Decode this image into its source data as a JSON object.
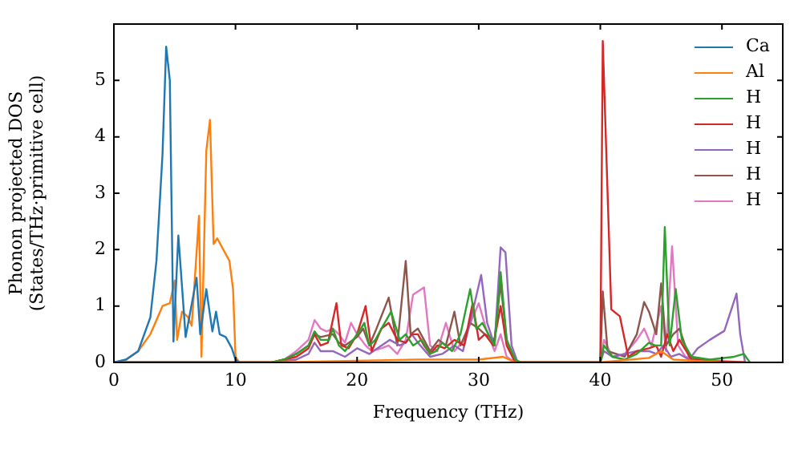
{
  "chart_data": {
    "type": "line",
    "xlabel": "Frequency (THz)",
    "ylabel": "Phonon projected DOS\n(States/THz·primitive cell)",
    "xlim": [
      0,
      55
    ],
    "ylim": [
      0,
      6
    ],
    "xticks": [
      0,
      10,
      20,
      30,
      40,
      50
    ],
    "yticks": [
      0,
      1,
      2,
      3,
      4,
      5
    ],
    "grid": false,
    "legend": "top right",
    "marker": "none",
    "line_style": "solid",
    "series": [
      {
        "name": "Ca",
        "color": "#1f77b4",
        "x": [
          0,
          1,
          2,
          3,
          3.5,
          4,
          4.3,
          4.6,
          4.9,
          5.3,
          5.9,
          6.8,
          7.1,
          7.6,
          8.1,
          8.4,
          8.7,
          9.2,
          9.7,
          10,
          10.3
        ],
        "values": [
          0,
          0.05,
          0.2,
          0.8,
          1.8,
          3.7,
          5.6,
          5.0,
          0.37,
          2.25,
          0.45,
          1.5,
          0.5,
          1.3,
          0.55,
          0.9,
          0.5,
          0.45,
          0.25,
          0.05,
          0
        ]
      },
      {
        "name": "Al",
        "color": "#ff7f0e",
        "x": [
          0,
          1,
          2,
          3,
          4,
          4.6,
          5,
          5.2,
          5.6,
          6.1,
          6.4,
          7,
          7.2,
          7.6,
          7.9,
          8.2,
          8.5,
          9,
          9.5,
          9.8,
          10,
          10.3,
          13,
          20,
          25,
          30,
          32,
          33,
          40,
          44,
          45,
          46,
          50
        ],
        "values": [
          0,
          0.05,
          0.2,
          0.5,
          1.0,
          1.05,
          1.45,
          0.4,
          0.9,
          0.8,
          0.65,
          2.6,
          0.1,
          3.75,
          4.3,
          2.1,
          2.2,
          2.0,
          1.8,
          1.3,
          0.1,
          0,
          0,
          0.03,
          0.05,
          0.05,
          0.1,
          0,
          0,
          0.08,
          0.2,
          0.05,
          0
        ]
      },
      {
        "name": "H",
        "color": "#2ca02c",
        "x": [
          0,
          13,
          14,
          15,
          16,
          16.5,
          17,
          17.7,
          18,
          18.5,
          19,
          20,
          20.6,
          21,
          21.5,
          22,
          22.8,
          23.5,
          24,
          24.6,
          25.3,
          26,
          26.5,
          27,
          27.8,
          28.5,
          29.3,
          29.8,
          30.3,
          30.8,
          31.3,
          31.8,
          32.3,
          33,
          33.5,
          40,
          40.3,
          41,
          42,
          43,
          44,
          44.5,
          45,
          45.3,
          45.7,
          46.2,
          46.7,
          47.5,
          49,
          51,
          51.8,
          52.3
        ],
        "values": [
          0,
          0,
          0.05,
          0.15,
          0.3,
          0.55,
          0.4,
          0.4,
          0.6,
          0.3,
          0.2,
          0.5,
          0.7,
          0.3,
          0.4,
          0.6,
          0.9,
          0.4,
          0.5,
          0.3,
          0.4,
          0.15,
          0.2,
          0.35,
          0.2,
          0.5,
          1.3,
          0.6,
          0.7,
          0.5,
          0.3,
          1.6,
          0.4,
          0.05,
          0,
          0,
          0.3,
          0.1,
          0.05,
          0.15,
          0.35,
          0.3,
          0.3,
          2.4,
          0.3,
          1.3,
          0.4,
          0.1,
          0.05,
          0.1,
          0.15,
          0
        ]
      },
      {
        "name": "H",
        "color": "#d62728",
        "x": [
          0,
          13,
          14,
          15,
          16,
          16.5,
          17,
          17.6,
          18.3,
          18.7,
          19.3,
          20,
          20.7,
          21.2,
          22,
          22.6,
          23.3,
          24,
          24.5,
          25,
          25.5,
          26,
          26.6,
          27.2,
          28,
          28.8,
          29.5,
          30,
          30.5,
          31.2,
          31.8,
          32.3,
          33,
          40,
          40.2,
          40.9,
          41.6,
          42.3,
          43,
          44,
          44.6,
          45,
          45.5,
          46,
          46.5,
          47.5,
          49,
          52
        ],
        "values": [
          0,
          0,
          0.05,
          0.1,
          0.25,
          0.5,
          0.3,
          0.35,
          1.05,
          0.3,
          0.25,
          0.5,
          1.0,
          0.2,
          0.6,
          0.7,
          0.4,
          0.35,
          0.5,
          0.5,
          0.3,
          0.15,
          0.3,
          0.25,
          0.4,
          0.3,
          1.05,
          0.4,
          0.5,
          0.3,
          1.0,
          0.3,
          0,
          0,
          5.7,
          0.94,
          0.82,
          0.1,
          0.2,
          0.25,
          0.3,
          0.1,
          0.5,
          0.2,
          0.4,
          0.05,
          0.02,
          0
        ]
      },
      {
        "name": "H",
        "color": "#9467bd",
        "x": [
          0,
          13,
          15,
          16,
          16.5,
          17,
          18,
          19,
          20,
          21,
          22,
          22.7,
          23.5,
          24,
          24.5,
          25,
          26,
          27,
          28,
          28.7,
          29.5,
          30.2,
          30.7,
          31.3,
          31.8,
          32.2,
          32.7,
          33.2,
          40,
          40.3,
          41,
          43,
          44,
          44.6,
          45.2,
          45.8,
          46.5,
          47.3,
          48,
          49,
          50.2,
          51.2,
          51.5,
          51.9
        ],
        "values": [
          0,
          0,
          0.05,
          0.15,
          0.35,
          0.2,
          0.2,
          0.1,
          0.25,
          0.15,
          0.3,
          0.4,
          0.3,
          0.35,
          0.5,
          0.35,
          0.1,
          0.15,
          0.3,
          0.2,
          0.9,
          1.55,
          0.7,
          0.3,
          2.04,
          1.95,
          0.3,
          0,
          0,
          0.2,
          0.1,
          0.2,
          0.2,
          0.15,
          0.3,
          0.1,
          0.15,
          0.05,
          0.25,
          0.4,
          0.56,
          1.22,
          0.5,
          0
        ]
      },
      {
        "name": "H",
        "color": "#8c564b",
        "x": [
          0,
          13,
          14,
          15,
          16,
          16.5,
          17,
          18,
          18.5,
          19,
          20,
          20.5,
          21,
          21.5,
          22.6,
          23.3,
          24,
          24.4,
          25,
          25.5,
          26,
          26.7,
          27.3,
          28,
          28.5,
          29.3,
          30,
          30.5,
          31.3,
          31.8,
          32.3,
          33,
          40,
          40.2,
          40.6,
          42,
          43,
          43.6,
          44,
          44.6,
          45,
          45.4,
          46,
          46.5,
          47.3,
          49,
          52
        ],
        "values": [
          0,
          0,
          0.05,
          0.15,
          0.3,
          0.5,
          0.45,
          0.5,
          0.35,
          0.3,
          0.45,
          0.6,
          0.3,
          0.55,
          1.15,
          0.3,
          1.8,
          0.5,
          0.6,
          0.4,
          0.2,
          0.4,
          0.3,
          0.9,
          0.3,
          0.7,
          0.6,
          0.5,
          0.4,
          1.4,
          0.4,
          0,
          0,
          1.26,
          0.2,
          0.1,
          0.5,
          1.07,
          0.9,
          0.5,
          1.4,
          0.3,
          0.5,
          0.6,
          0.1,
          0.02,
          0
        ]
      },
      {
        "name": "H",
        "color": "#e377c2",
        "x": [
          0,
          13,
          14,
          15,
          16,
          16.5,
          17,
          17.5,
          18,
          18.5,
          19,
          19.5,
          20,
          20.7,
          21.2,
          22,
          22.6,
          23.3,
          24,
          24.6,
          25.5,
          26,
          26.6,
          27.3,
          28,
          28.8,
          29.5,
          30,
          30.6,
          31.3,
          31.8,
          32.3,
          33,
          40,
          40.3,
          41,
          42,
          43,
          43.6,
          44.2,
          45,
          45.4,
          45.9,
          46.4,
          47,
          48,
          52
        ],
        "values": [
          0,
          0,
          0.05,
          0.2,
          0.4,
          0.75,
          0.6,
          0.55,
          0.6,
          0.5,
          0.35,
          0.7,
          0.5,
          0.3,
          0.2,
          0.25,
          0.3,
          0.15,
          0.4,
          1.2,
          1.33,
          0.3,
          0.2,
          0.7,
          0.2,
          0.4,
          0.8,
          1.05,
          0.6,
          0.2,
          0.5,
          0.1,
          0,
          0,
          0.4,
          0.1,
          0.15,
          0.4,
          0.6,
          0.3,
          1.0,
          0.2,
          2.06,
          0.3,
          0.1,
          0.05,
          0
        ]
      }
    ]
  }
}
